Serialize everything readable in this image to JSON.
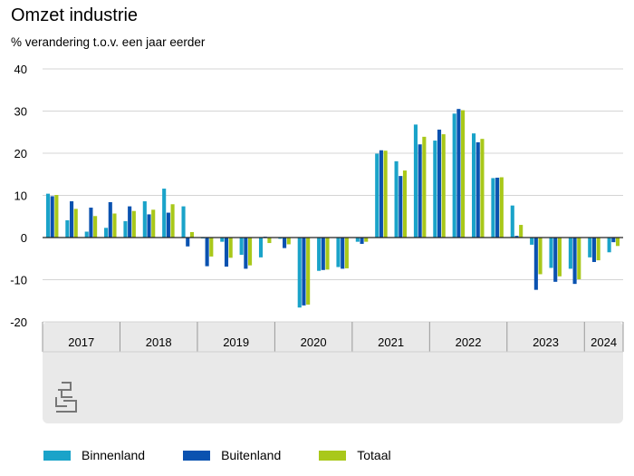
{
  "title": "Omzet industrie",
  "subtitle": "% verandering t.o.v. een jaar eerder",
  "logo_text": "cbs",
  "colors": {
    "binnenland": "#1aa3c9",
    "buitenland": "#0a52b0",
    "totaal": "#a9c81a",
    "panel": "#e9e9e9",
    "grid": "#d4d4d4",
    "zero": "#222222",
    "tick": "#999999"
  },
  "chart_data": {
    "type": "bar",
    "title": "Omzet industrie",
    "subtitle": "% verandering t.o.v. een jaar eerder",
    "ylim": [
      -20,
      40
    ],
    "yticks": [
      -20,
      -10,
      0,
      10,
      20,
      30,
      40
    ],
    "grid": true,
    "legend_position": "bottom",
    "year_labels": [
      "2017",
      "2018",
      "2019",
      "2020",
      "2021",
      "2022",
      "2023",
      "2024"
    ],
    "periods_per_year": [
      4,
      4,
      4,
      4,
      4,
      4,
      4,
      2
    ],
    "series": [
      {
        "name": "Binnenland",
        "values": [
          10.4,
          4.1,
          1.4,
          2.3,
          3.9,
          8.6,
          11.6,
          7.4,
          -0.2,
          -1.0,
          -4.1,
          -4.7,
          -0.3,
          -16.6,
          -7.9,
          -7.0,
          -1.0,
          19.9,
          18.1,
          26.8,
          23.0,
          29.4,
          24.7,
          14.1,
          7.6,
          -1.7,
          -7.2,
          -7.4,
          -4.7,
          -3.5
        ]
      },
      {
        "name": "Buitenland",
        "values": [
          9.8,
          8.6,
          7.1,
          8.4,
          7.4,
          5.5,
          5.9,
          -2.1,
          -6.8,
          -6.9,
          -7.4,
          0.2,
          -2.5,
          -16.1,
          -7.7,
          -7.4,
          -1.5,
          20.7,
          14.6,
          22.1,
          25.6,
          30.5,
          22.6,
          14.2,
          0.4,
          -12.4,
          -10.5,
          -11.0,
          -5.8,
          -1.1
        ]
      },
      {
        "name": "Totaal",
        "values": [
          10.1,
          6.8,
          5.1,
          5.7,
          6.3,
          6.6,
          7.9,
          1.3,
          -4.5,
          -4.8,
          -6.6,
          -1.3,
          -1.6,
          -15.9,
          -7.6,
          -7.3,
          -1.0,
          20.6,
          15.9,
          23.9,
          24.5,
          30.2,
          23.4,
          14.3,
          3.0,
          -8.7,
          -9.2,
          -9.9,
          -5.4,
          -2.0
        ]
      }
    ]
  }
}
